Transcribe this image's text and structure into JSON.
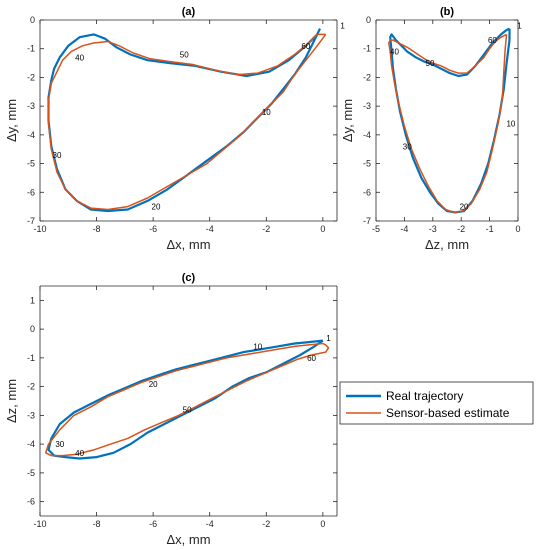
{
  "colors": {
    "real": "#0072BD",
    "sensor": "#D95319"
  },
  "legend": {
    "real_label": "Real trajectory",
    "sensor_label": "Sensor-based estimate"
  },
  "chart_data": [
    {
      "type": "line",
      "title": "(a)",
      "xlabel": "Δx, mm",
      "ylabel": "Δy, mm",
      "xlim": [
        -10,
        0.5
      ],
      "ylim": [
        -7,
        0
      ],
      "xticks": [
        -10,
        -8,
        -6,
        -4,
        -2,
        0
      ],
      "yticks": [
        -7,
        -6,
        -5,
        -4,
        -3,
        -2,
        -1,
        0
      ],
      "grid": false,
      "annotations": [
        {
          "text": "1",
          "x": 0.7,
          "y": -0.2
        },
        {
          "text": "10",
          "x": -2.0,
          "y": -3.2
        },
        {
          "text": "20",
          "x": -5.9,
          "y": -6.5
        },
        {
          "text": "30",
          "x": -9.4,
          "y": -4.7
        },
        {
          "text": "40",
          "x": -8.6,
          "y": -1.3
        },
        {
          "text": "50",
          "x": -4.9,
          "y": -1.2
        },
        {
          "text": "60",
          "x": -0.6,
          "y": -0.9
        }
      ],
      "series": [
        {
          "name": "Real trajectory",
          "x": [
            -0.1,
            -0.3,
            -0.6,
            -1.0,
            -1.4,
            -1.8,
            -2.3,
            -2.8,
            -3.4,
            -4.1,
            -4.8,
            -5.5,
            -6.2,
            -6.9,
            -7.6,
            -8.2,
            -8.7,
            -9.1,
            -9.4,
            -9.6,
            -9.7,
            -9.7,
            -9.6,
            -9.5,
            -9.3,
            -9.0,
            -8.6,
            -8.1,
            -7.7,
            -7.3,
            -6.8,
            -6.2,
            -5.4,
            -4.5,
            -3.6,
            -2.7,
            -1.9,
            -1.2,
            -0.6,
            -0.2,
            -0.1
          ],
          "y": [
            -0.3,
            -0.7,
            -1.3,
            -1.9,
            -2.4,
            -2.9,
            -3.4,
            -3.9,
            -4.4,
            -4.9,
            -5.4,
            -5.9,
            -6.3,
            -6.6,
            -6.65,
            -6.6,
            -6.3,
            -5.9,
            -5.2,
            -4.4,
            -3.5,
            -2.7,
            -2.1,
            -1.7,
            -1.3,
            -0.9,
            -0.6,
            -0.5,
            -0.65,
            -0.95,
            -1.2,
            -1.4,
            -1.5,
            -1.6,
            -1.8,
            -1.95,
            -1.8,
            -1.4,
            -0.9,
            -0.5,
            -0.3
          ]
        },
        {
          "name": "Sensor-based estimate",
          "x": [
            0.1,
            -0.2,
            -0.6,
            -1.0,
            -1.4,
            -1.9,
            -2.4,
            -2.9,
            -3.5,
            -4.1,
            -4.8,
            -5.5,
            -6.2,
            -6.9,
            -7.6,
            -8.2,
            -8.7,
            -9.1,
            -9.4,
            -9.6,
            -9.7,
            -9.7,
            -9.6,
            -9.4,
            -9.2,
            -8.9,
            -8.5,
            -8.1,
            -7.6,
            -7.2,
            -6.7,
            -6.1,
            -5.4,
            -4.6,
            -3.8,
            -3.0,
            -2.3,
            -1.6,
            -1.0,
            -0.5,
            -0.2,
            0.1
          ],
          "y": [
            -0.5,
            -0.9,
            -1.4,
            -1.9,
            -2.5,
            -3.0,
            -3.5,
            -4.0,
            -4.5,
            -5.0,
            -5.4,
            -5.8,
            -6.2,
            -6.5,
            -6.6,
            -6.55,
            -6.3,
            -5.9,
            -5.3,
            -4.5,
            -3.6,
            -2.8,
            -2.2,
            -1.8,
            -1.4,
            -1.1,
            -0.9,
            -0.8,
            -0.75,
            -0.9,
            -1.15,
            -1.35,
            -1.45,
            -1.55,
            -1.75,
            -1.9,
            -1.85,
            -1.6,
            -1.2,
            -0.8,
            -0.5,
            -0.5
          ]
        }
      ]
    },
    {
      "type": "line",
      "title": "(b)",
      "xlabel": "Δz, mm",
      "ylabel": "Δy, mm",
      "xlim": [
        -5,
        0
      ],
      "ylim": [
        -7,
        0
      ],
      "xticks": [
        -5,
        -4,
        -3,
        -2,
        -1,
        0
      ],
      "yticks": [
        -7,
        -6,
        -5,
        -4,
        -3,
        -2,
        -1,
        0
      ],
      "grid": false,
      "annotations": [
        {
          "text": "1",
          "x": 0.05,
          "y": -0.2
        },
        {
          "text": "10",
          "x": -0.25,
          "y": -3.6
        },
        {
          "text": "20",
          "x": -1.9,
          "y": -6.5
        },
        {
          "text": "30",
          "x": -3.9,
          "y": -4.4
        },
        {
          "text": "40",
          "x": -4.35,
          "y": -1.1
        },
        {
          "text": "50",
          "x": -3.1,
          "y": -1.5
        },
        {
          "text": "60",
          "x": -0.9,
          "y": -0.7
        }
      ],
      "series": [
        {
          "name": "Real trajectory",
          "x": [
            -0.3,
            -0.3,
            -0.4,
            -0.5,
            -0.65,
            -0.85,
            -1.05,
            -1.3,
            -1.6,
            -1.9,
            -2.2,
            -2.5,
            -2.8,
            -3.1,
            -3.4,
            -3.7,
            -3.95,
            -4.15,
            -4.3,
            -4.4,
            -4.45,
            -4.5,
            -4.45,
            -4.3,
            -4.1,
            -3.9,
            -3.6,
            -3.3,
            -3.0,
            -2.7,
            -2.4,
            -2.1,
            -1.8,
            -1.5,
            -1.2,
            -0.9,
            -0.6,
            -0.4,
            -0.3
          ],
          "y": [
            -0.3,
            -0.7,
            -1.5,
            -2.4,
            -3.3,
            -4.2,
            -5.0,
            -5.7,
            -6.3,
            -6.65,
            -6.7,
            -6.65,
            -6.4,
            -6.0,
            -5.5,
            -4.8,
            -4.0,
            -3.2,
            -2.4,
            -1.7,
            -1.1,
            -0.6,
            -0.5,
            -0.7,
            -0.9,
            -1.1,
            -1.3,
            -1.45,
            -1.55,
            -1.7,
            -1.85,
            -1.95,
            -1.9,
            -1.6,
            -1.2,
            -0.8,
            -0.5,
            -0.35,
            -0.3
          ]
        },
        {
          "name": "Sensor-based estimate",
          "x": [
            -0.4,
            -0.45,
            -0.5,
            -0.55,
            -0.7,
            -0.9,
            -1.1,
            -1.35,
            -1.65,
            -1.95,
            -2.25,
            -2.55,
            -2.85,
            -3.15,
            -3.45,
            -3.75,
            -4.0,
            -4.2,
            -4.35,
            -4.45,
            -4.5,
            -4.55,
            -4.5,
            -4.4,
            -4.2,
            -3.9,
            -3.6,
            -3.3,
            -3.0,
            -2.7,
            -2.4,
            -2.1,
            -1.8,
            -1.5,
            -1.2,
            -1.0,
            -0.8,
            -0.6,
            -0.4
          ],
          "y": [
            -0.5,
            -1.0,
            -1.8,
            -2.7,
            -3.6,
            -4.5,
            -5.3,
            -5.9,
            -6.4,
            -6.65,
            -6.7,
            -6.6,
            -6.3,
            -5.8,
            -5.2,
            -4.5,
            -3.7,
            -2.9,
            -2.2,
            -1.6,
            -1.1,
            -0.8,
            -0.7,
            -0.7,
            -0.8,
            -0.95,
            -1.15,
            -1.35,
            -1.5,
            -1.6,
            -1.75,
            -1.85,
            -1.85,
            -1.6,
            -1.3,
            -1.0,
            -0.75,
            -0.6,
            -0.5
          ]
        }
      ]
    },
    {
      "type": "line",
      "title": "(c)",
      "xlabel": "Δx, mm",
      "ylabel": "Δz, mm",
      "xlim": [
        -10,
        0.5
      ],
      "ylim": [
        -6.5,
        1.5
      ],
      "xticks": [
        -10,
        -8,
        -6,
        -4,
        -2,
        0
      ],
      "yticks": [
        -6,
        -5,
        -4,
        -3,
        -2,
        -1,
        0,
        1
      ],
      "grid": false,
      "annotations": [
        {
          "text": "1",
          "x": 0.2,
          "y": -0.3
        },
        {
          "text": "10",
          "x": -2.3,
          "y": -0.6
        },
        {
          "text": "20",
          "x": -6.0,
          "y": -1.9
        },
        {
          "text": "30",
          "x": -9.3,
          "y": -4.0
        },
        {
          "text": "40",
          "x": -8.6,
          "y": -4.3
        },
        {
          "text": "50",
          "x": -4.8,
          "y": -2.8
        },
        {
          "text": "60",
          "x": -0.4,
          "y": -1.0
        }
      ],
      "series": [
        {
          "name": "Real trajectory",
          "x": [
            0.0,
            -0.5,
            -1.0,
            -1.6,
            -2.2,
            -2.8,
            -3.4,
            -4.0,
            -4.6,
            -5.2,
            -5.8,
            -6.4,
            -7.0,
            -7.6,
            -8.2,
            -8.8,
            -9.3,
            -9.6,
            -9.7,
            -9.5,
            -9.1,
            -8.6,
            -8.0,
            -7.4,
            -6.8,
            -6.2,
            -5.6,
            -5.0,
            -4.4,
            -3.8,
            -3.2,
            -2.6,
            -2.0,
            -1.4,
            -0.8,
            -0.3,
            0.0
          ],
          "y": [
            -0.4,
            -0.45,
            -0.5,
            -0.6,
            -0.7,
            -0.8,
            -0.95,
            -1.1,
            -1.25,
            -1.4,
            -1.6,
            -1.8,
            -2.05,
            -2.3,
            -2.6,
            -2.9,
            -3.3,
            -3.8,
            -4.2,
            -4.4,
            -4.45,
            -4.5,
            -4.45,
            -4.3,
            -4.0,
            -3.6,
            -3.3,
            -3.0,
            -2.7,
            -2.4,
            -2.0,
            -1.7,
            -1.5,
            -1.2,
            -0.9,
            -0.6,
            -0.4
          ]
        },
        {
          "name": "Sensor-based estimate",
          "x": [
            0.0,
            -0.5,
            -1.0,
            -1.6,
            -2.2,
            -2.8,
            -3.4,
            -4.0,
            -4.6,
            -5.2,
            -5.8,
            -6.4,
            -7.0,
            -7.6,
            -8.2,
            -8.8,
            -9.3,
            -9.7,
            -9.8,
            -9.6,
            -9.2,
            -8.7,
            -8.1,
            -7.5,
            -6.9,
            -6.3,
            -5.7,
            -5.1,
            -4.5,
            -3.9,
            -3.3,
            -2.7,
            -2.1,
            -1.5,
            -0.9,
            -0.4,
            0.1,
            0.2,
            0.1,
            0.0
          ],
          "y": [
            -0.5,
            -0.55,
            -0.6,
            -0.7,
            -0.8,
            -0.9,
            -1.0,
            -1.15,
            -1.3,
            -1.45,
            -1.65,
            -1.85,
            -2.1,
            -2.35,
            -2.7,
            -3.0,
            -3.5,
            -4.0,
            -4.3,
            -4.4,
            -4.4,
            -4.35,
            -4.2,
            -4.0,
            -3.8,
            -3.5,
            -3.25,
            -3.0,
            -2.7,
            -2.4,
            -2.1,
            -1.8,
            -1.55,
            -1.3,
            -1.05,
            -0.9,
            -0.8,
            -0.65,
            -0.55,
            -0.5
          ]
        }
      ]
    }
  ]
}
